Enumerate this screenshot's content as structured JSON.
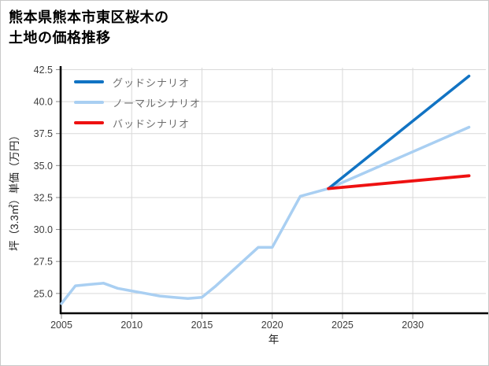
{
  "page": {
    "background": "#ffffff",
    "border_color": "#c9c9c9"
  },
  "title": {
    "line1": "熊本県熊本市東区桜木の",
    "line2": "土地の価格推移"
  },
  "legend": {
    "position": "top-left",
    "text_color": "#6e6e6e",
    "items": [
      {
        "label": "グッドシナリオ",
        "color": "#1173c3"
      },
      {
        "label": "ノーマルシナリオ",
        "color": "#a9cff2"
      },
      {
        "label": "バッドシナリオ",
        "color": "#ee1111"
      }
    ]
  },
  "chart_data": {
    "type": "line",
    "title": "熊本県熊本市東区桜木の土地の価格推移",
    "xlabel": "年",
    "ylabel": "坪（3.3㎡）単価（万円）",
    "x_ticks": [
      2005,
      2010,
      2015,
      2020,
      2025,
      2030
    ],
    "y_ticks": [
      25.0,
      27.5,
      30.0,
      32.5,
      35.0,
      37.5,
      40.0,
      42.5
    ],
    "xlim": [
      2005,
      2035.2
    ],
    "ylim": [
      23.45,
      42.65
    ],
    "grid": true,
    "grid_color": "#d9d9d9",
    "axis_color": "#000000",
    "tick_label_color": "#3d3d3d",
    "series": [
      {
        "name": "historical",
        "color": "#a9cff2",
        "width": 3.5,
        "x": [
          2005,
          2006,
          2007,
          2008,
          2009,
          2010,
          2011,
          2012,
          2013,
          2014,
          2015,
          2016,
          2017,
          2018,
          2019,
          2020,
          2021,
          2022,
          2023,
          2024
        ],
        "y": [
          24.2,
          25.6,
          25.7,
          25.8,
          25.4,
          25.2,
          25.0,
          24.8,
          24.7,
          24.6,
          24.7,
          25.6,
          26.6,
          27.6,
          28.6,
          28.6,
          30.6,
          32.6,
          32.9,
          33.2
        ]
      },
      {
        "name": "ノーマルシナリオ",
        "color": "#a9cff2",
        "width": 3.5,
        "x": [
          2024,
          2034
        ],
        "y": [
          33.2,
          38.0
        ]
      },
      {
        "name": "グッドシナリオ",
        "color": "#1173c3",
        "width": 3.5,
        "x": [
          2024,
          2034
        ],
        "y": [
          33.2,
          42.0
        ]
      },
      {
        "name": "バッドシナリオ",
        "color": "#ee1111",
        "width": 3.8,
        "x": [
          2024,
          2034
        ],
        "y": [
          33.2,
          34.2
        ]
      }
    ]
  }
}
